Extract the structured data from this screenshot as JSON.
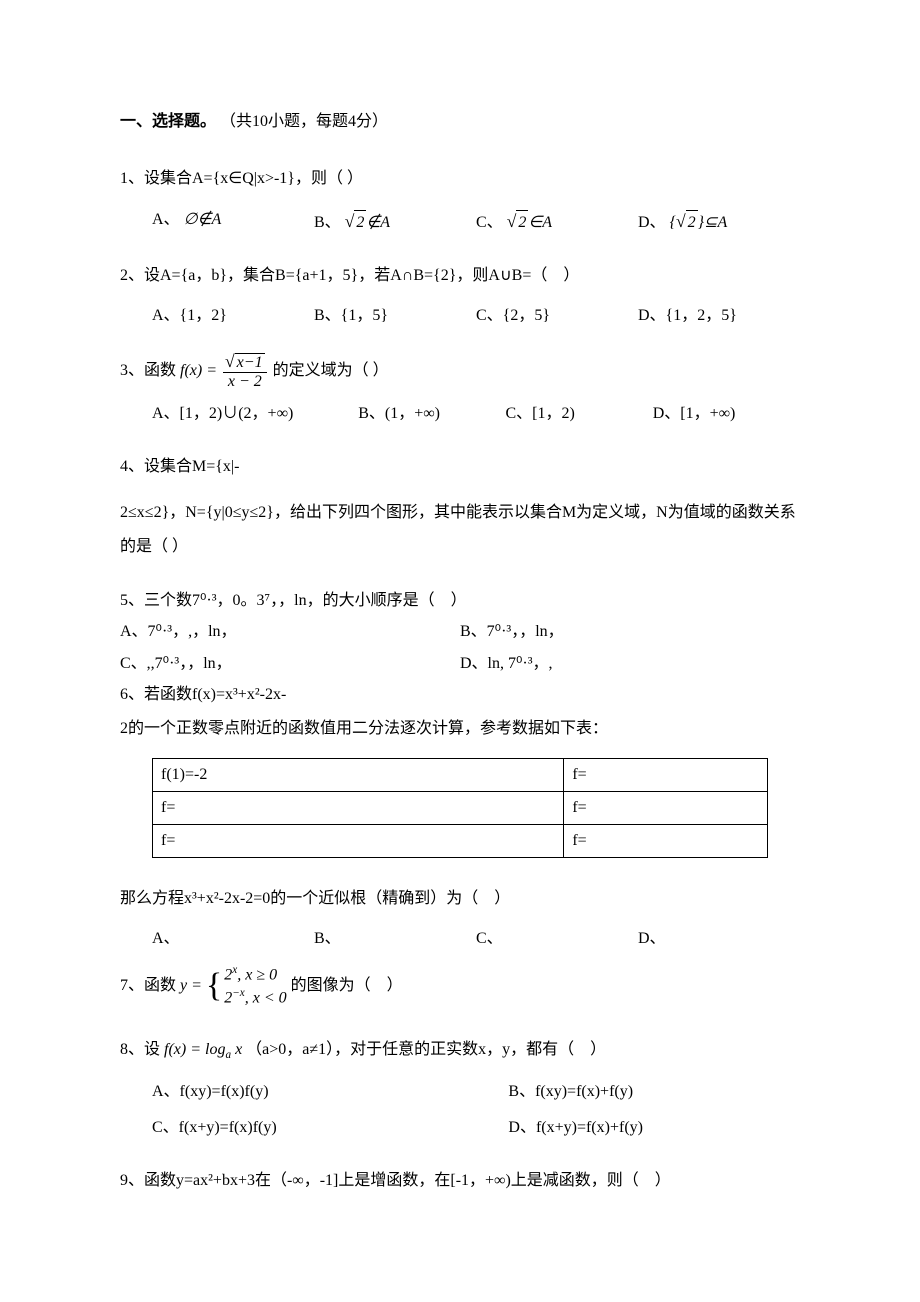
{
  "section": {
    "title": "一、选择题。",
    "subtitle": "（共10小题，每题4分）"
  },
  "q1": {
    "stem": "1、设集合A={x∈Q|x>-1}，则（ ）",
    "A": "A、",
    "B": "B、",
    "C": "C、",
    "D": "D、",
    "A_expr_pre": "∅",
    "A_expr_rel": "∉",
    "A_expr_post": "A",
    "B_rad": "2",
    "B_rel": "∉",
    "B_post": "A",
    "C_rad": "2",
    "C_rel": "∈",
    "C_post": "A",
    "D_brace_rad": "2",
    "D_rel": "⊆",
    "D_post": "A"
  },
  "q2": {
    "stem": "2、设A={a，b}，集合B={a+1，5}，若A∩B={2}，则A∪B=（　）",
    "A": "A、{1，2}",
    "B": "B、{1，5}",
    "C": "C、{2，5}",
    "D": "D、{1，2，5}"
  },
  "q3": {
    "stem_pre": "3、函数 ",
    "stem_fx": "f(x) =",
    "num_rad": "x−1",
    "den": "x − 2",
    "stem_post": " 的定义域为（ ）",
    "A": "A、[1，2)∪(2，+∞)",
    "B": "B、(1，+∞)",
    "C": "C、[1，2)",
    "D": "D、[1，+∞)"
  },
  "q4": {
    "line1": "4、设集合M={x|-",
    "line2": "2≤x≤2}，N={y|0≤y≤2}，给出下列四个图形，其中能表示以集合M为定义域，N为值域的函数关系的是（ ）"
  },
  "q5": {
    "stem": "5、三个数7⁰·³，0。3⁷，，ln，的大小顺序是（　）",
    "A": "A、7⁰·³，,，ln，",
    "B": "B、7⁰·³，，ln，",
    "C": "C、,,7⁰·³，，ln，",
    "D": "D、ln, 7⁰·³，,"
  },
  "q6": {
    "stem1": "6、若函数f(x)=x³+x²-2x-",
    "stem2": "2的一个正数零点附近的函数值用二分法逐次计算，参考数据如下表：",
    "cells": [
      [
        "f(1)=-2",
        "f="
      ],
      [
        "f=",
        "f="
      ],
      [
        "f=",
        "f="
      ]
    ],
    "after": "  那么方程x³+x²-2x-2=0的一个近似根（精确到）为（　）",
    "A": "A、",
    "B": "B、",
    "C": "C、",
    "D": "D、"
  },
  "q7": {
    "pre": "7、函数 ",
    "y_eq": "y =",
    "case1_base": "2",
    "case1_exp": "x",
    "case1_cond": ", x ≥ 0",
    "case2_base": "2",
    "case2_exp": "−x",
    "case2_cond": ", x < 0",
    "post": "  的图像为（　）"
  },
  "q8": {
    "pre": "8、设 ",
    "fx": "f(x) = log",
    "sub": "a",
    "arg": " x",
    "post": " （a>0，a≠1），对于任意的正实数x，y，都有（　）",
    "A": "A、f(xy)=f(x)f(y)",
    "B": "B、f(xy)=f(x)+f(y)",
    "C": "C、f(x+y)=f(x)f(y)",
    "D": "D、f(x+y)=f(x)+f(y)"
  },
  "q9": {
    "stem": "9、函数y=ax²+bx+3在（-∞，-1]上是增函数，在[-1，+∞)上是减函数，则（　）"
  }
}
